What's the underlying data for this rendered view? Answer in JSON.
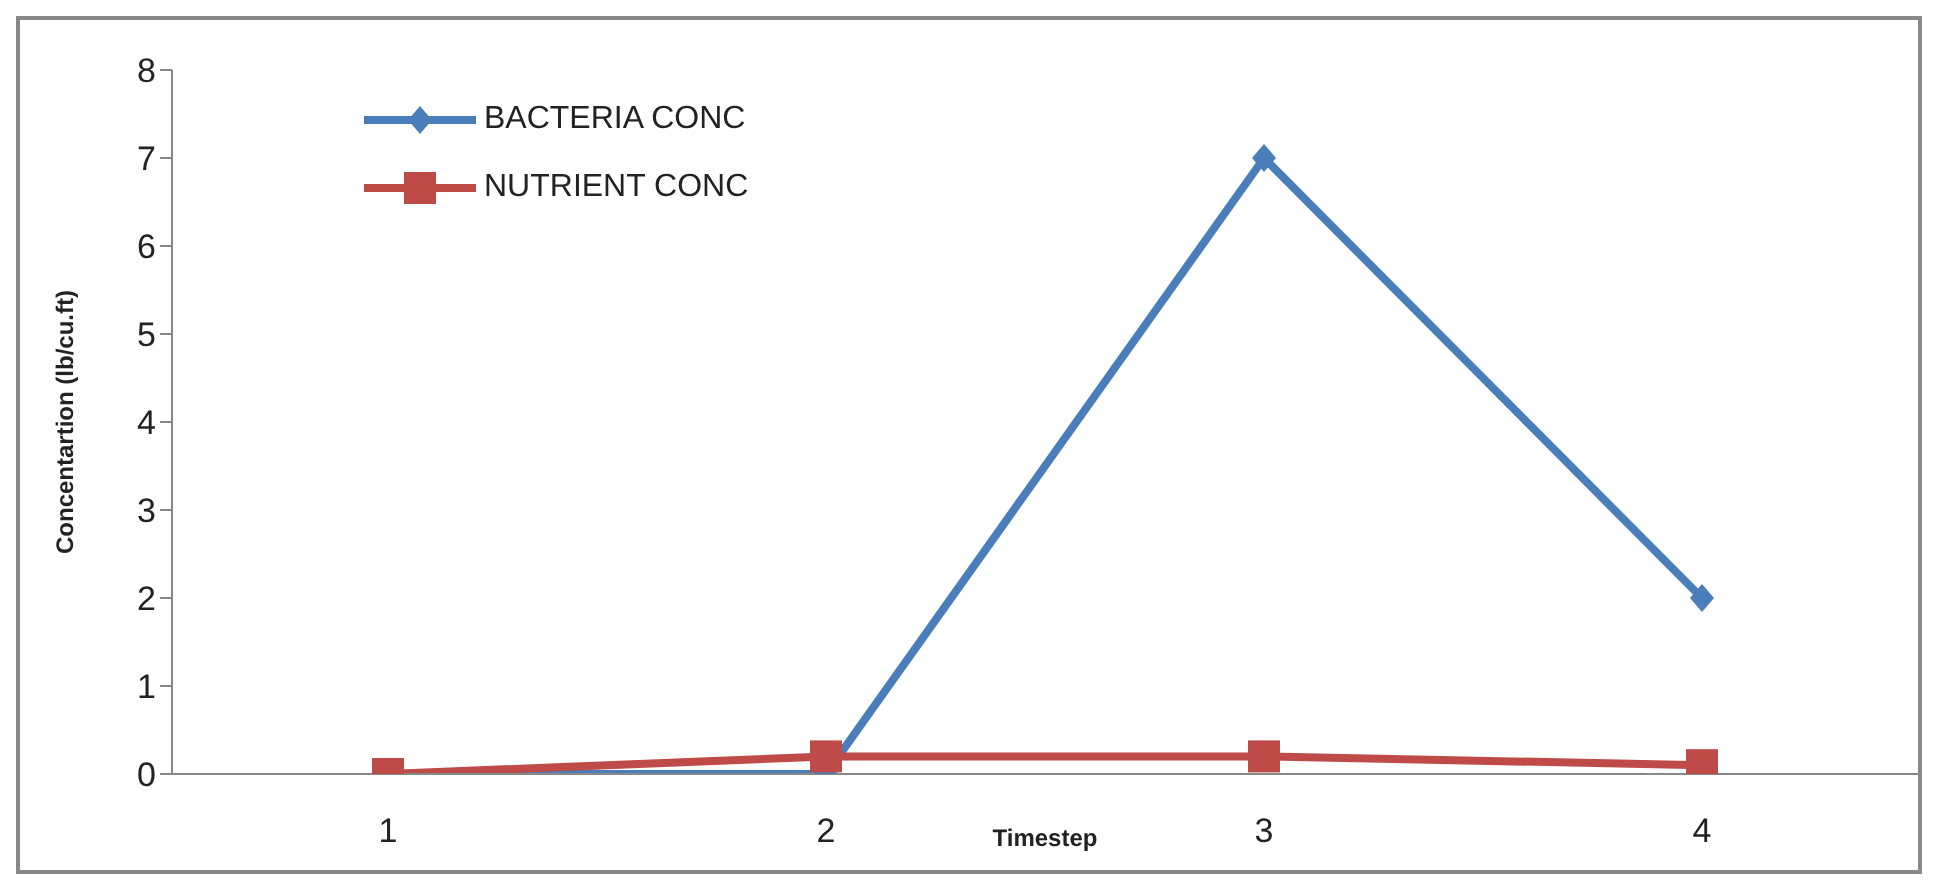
{
  "chart_data": {
    "type": "line",
    "xlabel": "Timestep",
    "ylabel": "Concentartion (lb/cu.ft)",
    "categories": [
      "1",
      "2",
      "3",
      "4"
    ],
    "series": [
      {
        "name": "BACTERIA CONC",
        "color": "#4a7ebb",
        "values": [
          0,
          0,
          7,
          2
        ],
        "marker": "diamond"
      },
      {
        "name": "NUTRIENT CONC",
        "color": "#be4b48",
        "values": [
          0,
          0.2,
          0.2,
          0.1
        ],
        "marker": "square"
      }
    ],
    "ylim": [
      0,
      8
    ],
    "yticks": [
      0,
      1,
      2,
      3,
      4,
      5,
      6,
      7,
      8
    ],
    "grid": false,
    "legend": "top left"
  }
}
